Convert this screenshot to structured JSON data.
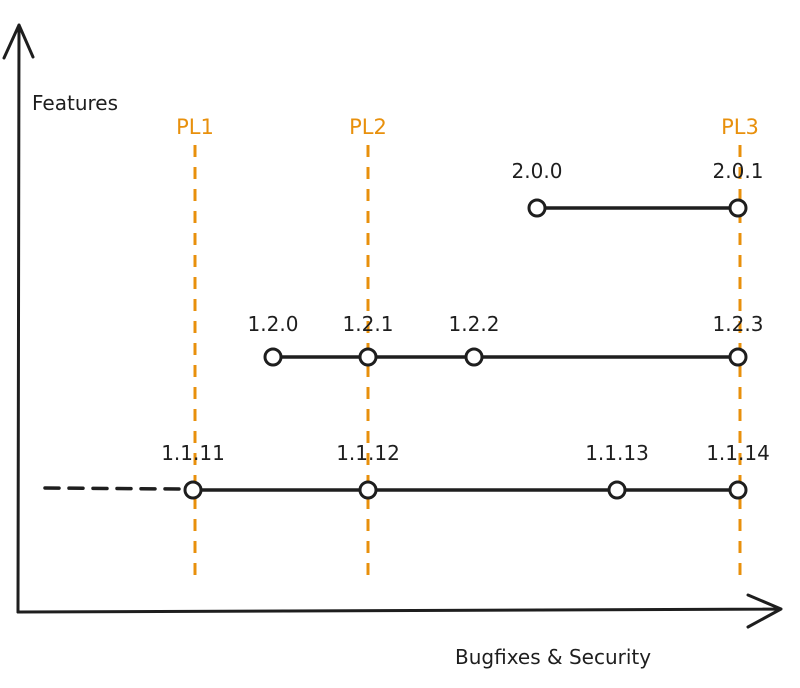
{
  "axes": {
    "y_label": "Features",
    "x_label": "Bugfixes & Security"
  },
  "milestones": [
    {
      "label": "PL1"
    },
    {
      "label": "PL2"
    },
    {
      "label": "PL3"
    }
  ],
  "branches": [
    {
      "releases": [
        {
          "label": "2.0.0"
        },
        {
          "label": "2.0.1"
        }
      ]
    },
    {
      "releases": [
        {
          "label": "1.2.0"
        },
        {
          "label": "1.2.1"
        },
        {
          "label": "1.2.2"
        },
        {
          "label": "1.2.3"
        }
      ]
    },
    {
      "releases": [
        {
          "label": "1.1.11"
        },
        {
          "label": "1.1.12"
        },
        {
          "label": "1.1.13"
        },
        {
          "label": "1.1.14"
        }
      ]
    }
  ]
}
